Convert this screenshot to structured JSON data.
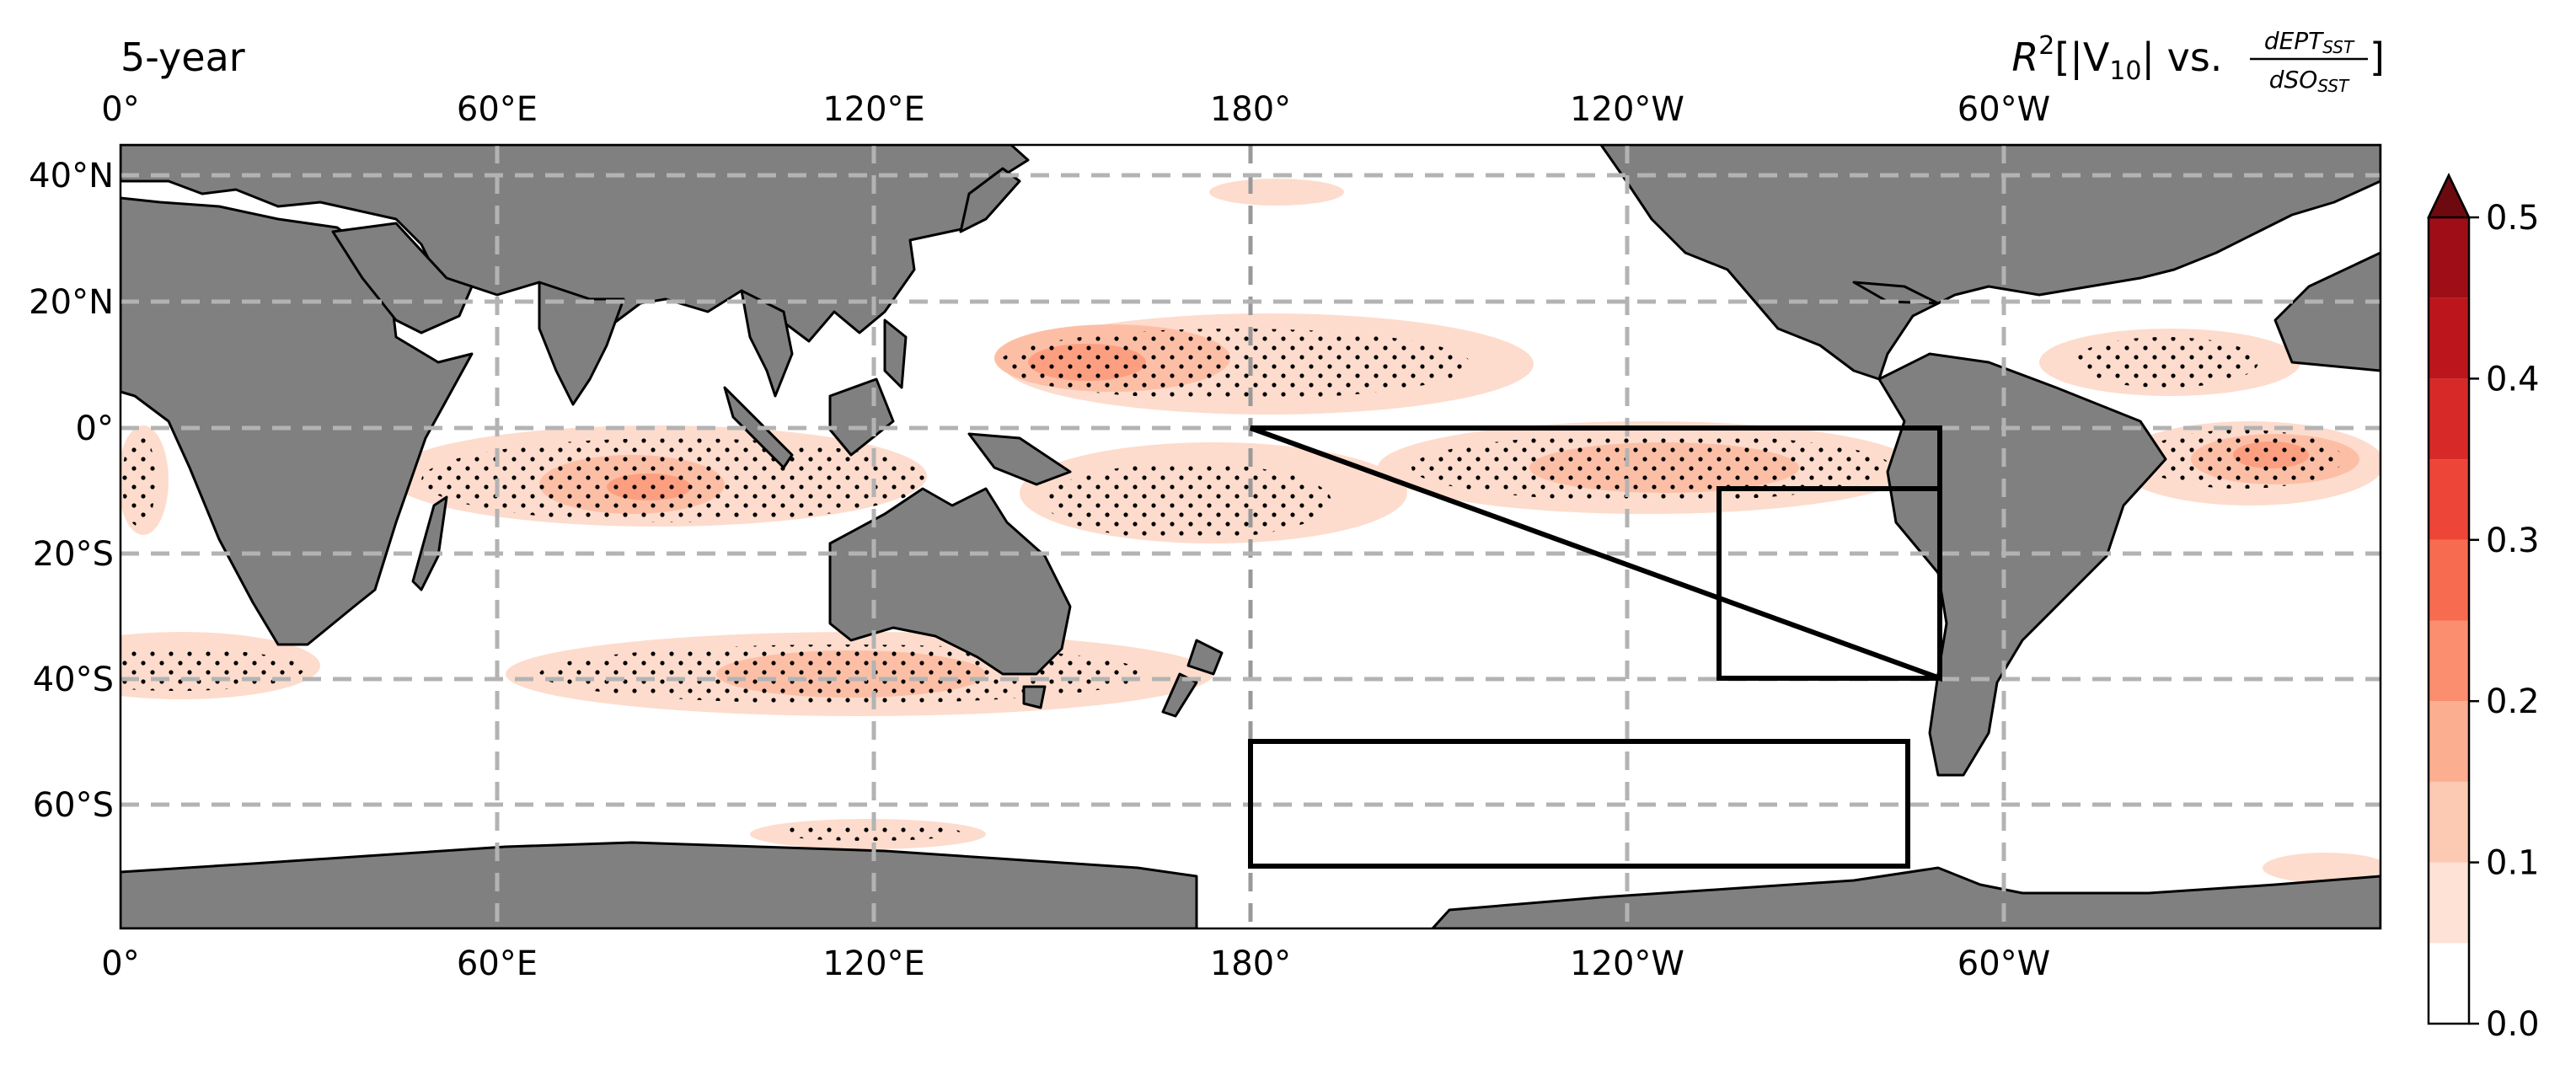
{
  "panel_label": "5-year",
  "title": {
    "prefix": "R",
    "exp": "2",
    "open": "[|V",
    "sub": "10",
    "mid": "| vs. ",
    "numerator": "dEPT",
    "numerator_sub": "SST",
    "denominator": "dSO",
    "denominator_sub": "SST",
    "close": "]"
  },
  "lon_ticks": [
    "0°",
    "60°E",
    "120°E",
    "180°",
    "120°W",
    "60°W"
  ],
  "lat_ticks": [
    "40°N",
    "20°N",
    "0°",
    "20°S",
    "40°S",
    "60°S"
  ],
  "colorbar": {
    "ticks": [
      "0.0",
      "0.1",
      "0.2",
      "0.3",
      "0.4",
      "0.5"
    ],
    "levels": [
      0.0,
      0.05,
      0.1,
      0.15,
      0.2,
      0.25,
      0.3,
      0.35,
      0.4,
      0.45,
      0.5
    ],
    "colors": [
      "#ffffff",
      "#fee2d6",
      "#fcc9b3",
      "#fcae91",
      "#fb8e6f",
      "#f76b50",
      "#ee4539",
      "#d72a28",
      "#bc161c",
      "#9f0e16"
    ],
    "extend_color": "#6d0a10",
    "extend": "max"
  },
  "colors": {
    "land": "#808080",
    "grid": "#b3b3b3",
    "box": "#000000"
  },
  "boxes": [
    {
      "name": "EPT triangle",
      "vertices": [
        [
          180,
          0
        ],
        [
          -75,
          0
        ],
        [
          -75,
          -40
        ]
      ]
    },
    {
      "name": "EPT box",
      "lon": [
        -75,
        -75
      ],
      "lon_range": [
        -110,
        -75
      ],
      "lat_range": [
        -40,
        -10
      ]
    },
    {
      "name": "SO box",
      "lon_range": [
        180,
        -80
      ],
      "lat_range": [
        -70,
        -50
      ]
    }
  ]
}
